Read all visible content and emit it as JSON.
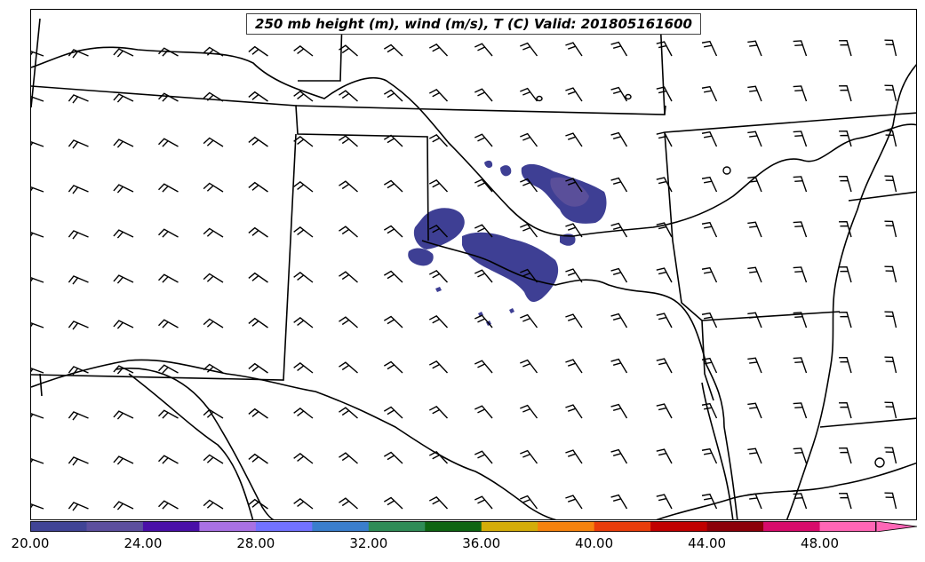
{
  "title": "250 mb height (m), wind (m/s), T (C) Valid: 201805161600",
  "colorbar": {
    "min": 20,
    "max": 52,
    "step": 2,
    "colors": [
      "#404496",
      "#5c4f9e",
      "#4a10a8",
      "#a971e4",
      "#7272ff",
      "#3a7ecd",
      "#2f8c57",
      "#0e6512",
      "#d4ad09",
      "#f6820d",
      "#e93d0a",
      "#c10000",
      "#8c0009",
      "#d80b6b",
      "#ff66b6"
    ],
    "ticks": [
      "20.00",
      "24.00",
      "28.00",
      "32.00",
      "36.00",
      "40.00",
      "44.00",
      "48.00"
    ],
    "extend": "max"
  },
  "shading_color": "#3e3f94"
}
